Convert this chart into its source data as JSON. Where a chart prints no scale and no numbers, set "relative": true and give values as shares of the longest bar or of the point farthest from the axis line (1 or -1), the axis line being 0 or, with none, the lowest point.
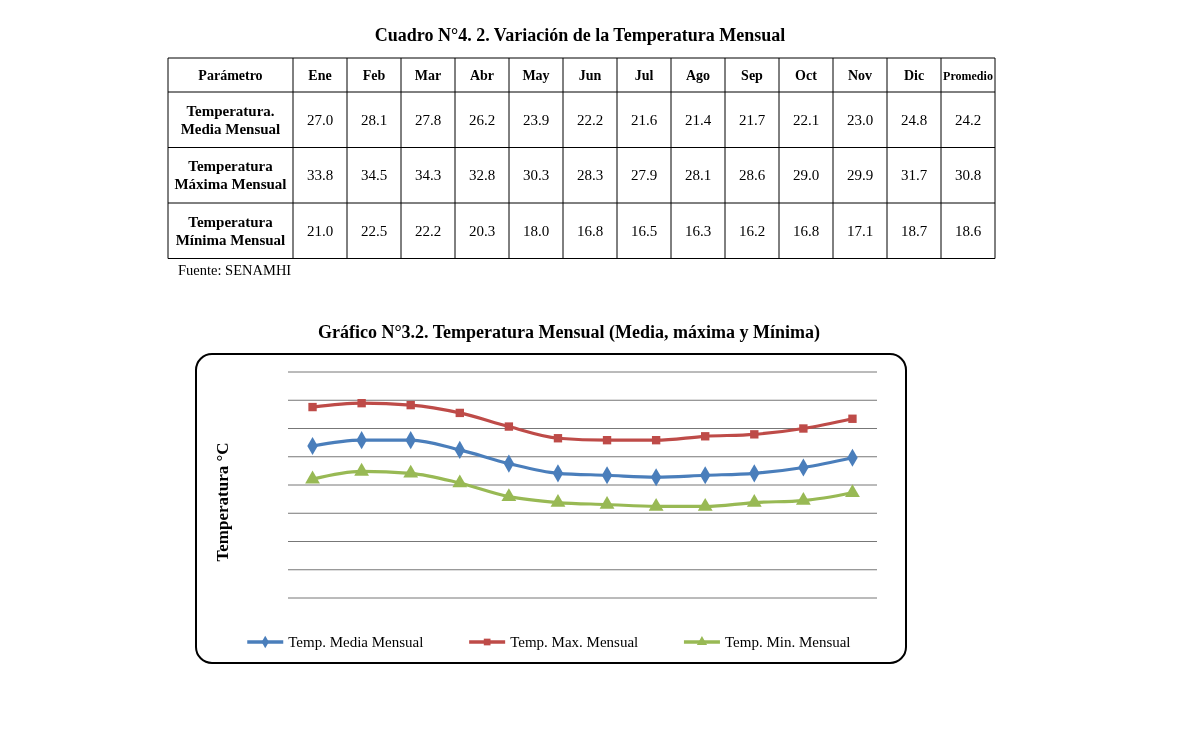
{
  "chart_data": [
    {
      "type": "heatmap",
      "title": "Cuadro N°4. 2. Variación de la Temperatura Mensual",
      "ylabel": "Parámetro",
      "categories": [
        "Ene",
        "Feb",
        "Mar",
        "Abr",
        "May",
        "Jun",
        "Jul",
        "Ago",
        "Sep",
        "Oct",
        "Nov",
        "Dic",
        "Promedio"
      ],
      "y_categories": [
        "Temperatura. Media Mensual",
        "Temperatura Máxima Mensual",
        "Temperatura Mínima Mensual"
      ],
      "cells": [
        [
          null,
          null,
          null,
          null,
          null,
          null,
          null,
          null,
          null,
          null,
          null,
          null,
          null
        ],
        [
          null,
          null,
          null,
          null,
          null,
          null,
          null,
          null,
          null,
          null,
          null,
          null,
          null
        ],
        [
          null,
          null,
          null,
          null,
          null,
          null,
          null,
          null,
          null,
          null,
          null,
          null,
          null
        ]
      ],
      "cell_labels": [
        [
          "27.0",
          "28.1",
          "27.8",
          "26.2",
          "23.9",
          "22.2",
          "21.6",
          "21.4",
          "21.7",
          "22.1",
          "23.0",
          "24.8",
          "24.2"
        ],
        [
          "33.8",
          "34.5",
          "34.3",
          "32.8",
          "30.3",
          "28.3",
          "27.9",
          "28.1",
          "28.6",
          "29.0",
          "29.9",
          "31.7",
          "30.8"
        ],
        [
          "21.0",
          "22.5",
          "22.2",
          "20.3",
          "18.0",
          "16.8",
          "16.5",
          "16.3",
          "16.2",
          "16.8",
          "17.1",
          "18.7",
          "18.6"
        ]
      ],
      "annotations": [
        "Fuente: SENAMHI"
      ]
    },
    {
      "type": "line",
      "title": "Gráfico N°3.2.  Temperatura Mensual (Media, máxima y Mínima)",
      "ylabel": "Temperatura °C",
      "relative": true,
      "categories": [
        null,
        null,
        null,
        null,
        null,
        null,
        null,
        null,
        null,
        null,
        null,
        null
      ],
      "series": [
        {
          "name": "Temp. Media Mensual",
          "color": "#4a7ebb",
          "marker": "diamond",
          "values": [
            0.78,
            0.81,
            0.81,
            0.76,
            0.69,
            0.64,
            0.63,
            0.62,
            0.63,
            0.64,
            0.67,
            0.72
          ]
        },
        {
          "name": "Temp. Max. Mensual",
          "color": "#be4b48",
          "marker": "square",
          "values": [
            0.98,
            1,
            0.99,
            0.95,
            0.88,
            0.82,
            0.81,
            0.81,
            0.83,
            0.84,
            0.87,
            0.92
          ]
        },
        {
          "name": "Temp. Min. Mensual",
          "color": "#98b954",
          "marker": "triangle",
          "values": [
            0.61,
            0.65,
            0.64,
            0.59,
            0.52,
            0.49,
            0.48,
            0.47,
            0.47,
            0.49,
            0.5,
            0.54
          ]
        }
      ],
      "grid": "y",
      "legend": "bottom"
    }
  ]
}
